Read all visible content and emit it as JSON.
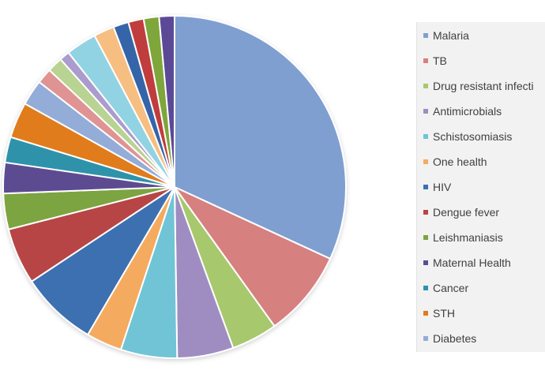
{
  "chart_data": {
    "type": "pie",
    "title": "",
    "slices": [
      {
        "name": "Malaria",
        "value": 33.0,
        "color": "#7f9fd0"
      },
      {
        "name": "TB",
        "value": 8.5,
        "color": "#d6807f"
      },
      {
        "name": "Drug resistant infections",
        "value": 4.5,
        "color": "#a7c86d"
      },
      {
        "name": "Antimicrobials",
        "value": 5.5,
        "color": "#9f8dc1"
      },
      {
        "name": "Schistosomiasis",
        "value": 5.5,
        "color": "#6fc4d6"
      },
      {
        "name": "One health",
        "value": 3.5,
        "color": "#f4ab5f"
      },
      {
        "name": "HIV",
        "value": 7.5,
        "color": "#3d6fb0"
      },
      {
        "name": "Dengue fever",
        "value": 5.5,
        "color": "#b84545"
      },
      {
        "name": "Leishmaniasis",
        "value": 3.5,
        "color": "#7ca440"
      },
      {
        "name": "Maternal Health",
        "value": 3.0,
        "color": "#5d4b91"
      },
      {
        "name": "Cancer",
        "value": 2.5,
        "color": "#2f93aa"
      },
      {
        "name": "STH",
        "value": 3.5,
        "color": "#e07c1d"
      },
      {
        "name": "Diabetes",
        "value": 2.5,
        "color": "#93acd8"
      },
      {
        "name": "",
        "value": 1.5,
        "color": "#df9493"
      },
      {
        "name": "",
        "value": 1.5,
        "color": "#b8d392"
      },
      {
        "name": "",
        "value": 1.0,
        "color": "#ab9ccd"
      },
      {
        "name": "",
        "value": 3.0,
        "color": "#92d3e3"
      },
      {
        "name": "",
        "value": 2.0,
        "color": "#f7be82"
      },
      {
        "name": "",
        "value": 1.5,
        "color": "#3565a8"
      },
      {
        "name": "",
        "value": 1.5,
        "color": "#c03e3e"
      },
      {
        "name": "",
        "value": 1.5,
        "color": "#7ea63a"
      },
      {
        "name": "",
        "value": 1.5,
        "color": "#5b4896"
      }
    ],
    "legend_placement": "right"
  },
  "legend": {
    "items": [
      {
        "label": "Malaria",
        "color": "#7f9fd0"
      },
      {
        "label": "TB",
        "color": "#d6807f"
      },
      {
        "label": "Drug resistant infecti",
        "color": "#a7c86d"
      },
      {
        "label": "Antimicrobials",
        "color": "#9f8dc1"
      },
      {
        "label": "Schistosomiasis",
        "color": "#6fc4d6"
      },
      {
        "label": "One health",
        "color": "#f4ab5f"
      },
      {
        "label": "HIV",
        "color": "#3d6fb0"
      },
      {
        "label": "Dengue fever",
        "color": "#b84545"
      },
      {
        "label": "Leishmaniasis",
        "color": "#7ca440"
      },
      {
        "label": "Maternal Health",
        "color": "#5d4b91"
      },
      {
        "label": "Cancer",
        "color": "#2f93aa"
      },
      {
        "label": "STH",
        "color": "#e07c1d"
      },
      {
        "label": "Diabetes",
        "color": "#93acd8"
      }
    ]
  }
}
